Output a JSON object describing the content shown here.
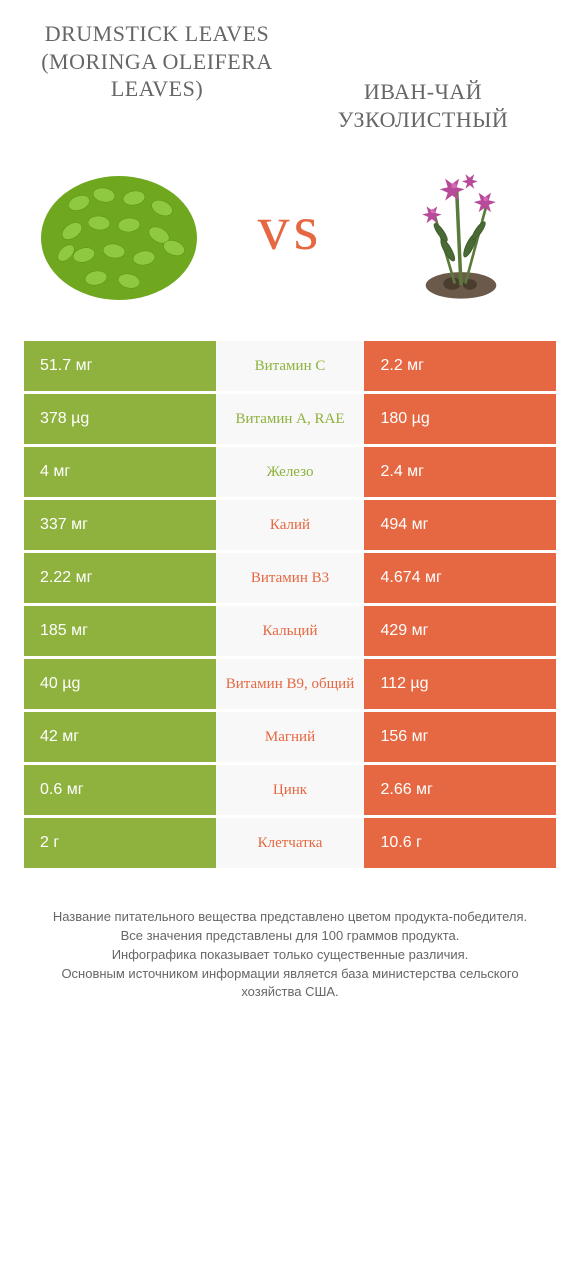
{
  "titles": {
    "left": "Drumstick leaves (Moringa oleifera leaves)",
    "right": "Иван-чай узколистный"
  },
  "vs": "vs",
  "colors": {
    "left": "#8eb23d",
    "right": "#e56842",
    "mid_bg": "#f8f8f8",
    "text_mid": "#333333"
  },
  "rows": [
    {
      "left": "51.7 мг",
      "label": "Витамин C",
      "right": "2.2 мг",
      "winner": "left"
    },
    {
      "left": "378 µg",
      "label": "Витамин A, RAE",
      "right": "180 µg",
      "winner": "left"
    },
    {
      "left": "4 мг",
      "label": "Железо",
      "right": "2.4 мг",
      "winner": "left"
    },
    {
      "left": "337 мг",
      "label": "Калий",
      "right": "494 мг",
      "winner": "right"
    },
    {
      "left": "2.22 мг",
      "label": "Витамин B3",
      "right": "4.674 мг",
      "winner": "right"
    },
    {
      "left": "185 мг",
      "label": "Кальций",
      "right": "429 мг",
      "winner": "right"
    },
    {
      "left": "40 µg",
      "label": "Витамин B9, общий",
      "right": "112 µg",
      "winner": "right"
    },
    {
      "left": "42 мг",
      "label": "Магний",
      "right": "156 мг",
      "winner": "right"
    },
    {
      "left": "0.6 мг",
      "label": "Цинк",
      "right": "2.66 мг",
      "winner": "right"
    },
    {
      "left": "2 г",
      "label": "Клетчатка",
      "right": "10.6 г",
      "winner": "right"
    }
  ],
  "footnote": "Название питательного вещества представлено цветом продукта-победителя.\nВсе значения представлены для 100 граммов продукта.\nИнфографика показывает только существенные различия.\nОсновным источником информации является база министерства сельского хозяйства США."
}
